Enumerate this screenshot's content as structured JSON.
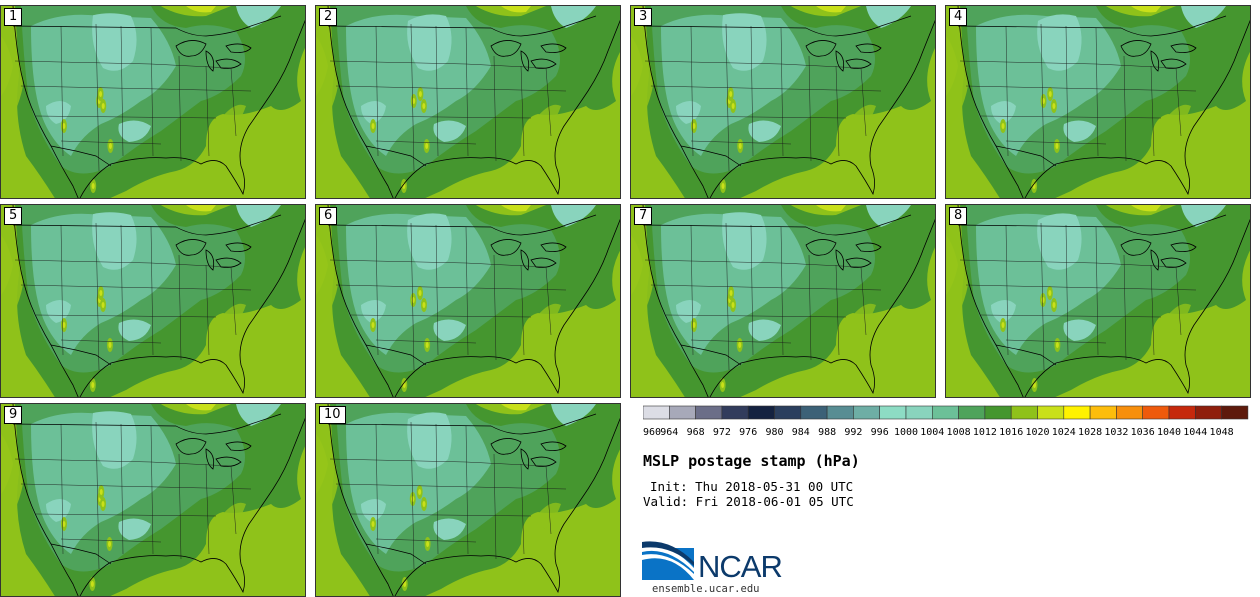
{
  "panels": [
    "1",
    "2",
    "3",
    "4",
    "5",
    "6",
    "7",
    "8",
    "9",
    "10"
  ],
  "legend": {
    "levels": [
      "960",
      "964",
      "968",
      "972",
      "976",
      "980",
      "984",
      "988",
      "992",
      "996",
      "1000",
      "1004",
      "1008",
      "1012",
      "1016",
      "1020",
      "1024",
      "1028",
      "1032",
      "1036",
      "1040",
      "1044",
      "1048"
    ],
    "colors": [
      "#dcdde5",
      "#a7a9b9",
      "#6b6e88",
      "#323c5c",
      "#142240",
      "#2b3f5e",
      "#3c6177",
      "#588d93",
      "#6eaea5",
      "#8ddcc4",
      "#89d4bd",
      "#6cc098",
      "#4fa35b",
      "#45962f",
      "#8fc21a",
      "#c9e01a",
      "#fff200",
      "#fdbd0c",
      "#f78f0c",
      "#ee5a0c",
      "#c6290c",
      "#8f1f0c",
      "#5e1a0c"
    ]
  },
  "title": "MSLP postage stamp (hPa)",
  "init": "Init: Thu 2018-05-31 00 UTC",
  "valid": "Valid: Fri 2018-06-01 05 UTC",
  "logo": {
    "name": "NCAR",
    "url": "ensemble.ucar.edu"
  }
}
